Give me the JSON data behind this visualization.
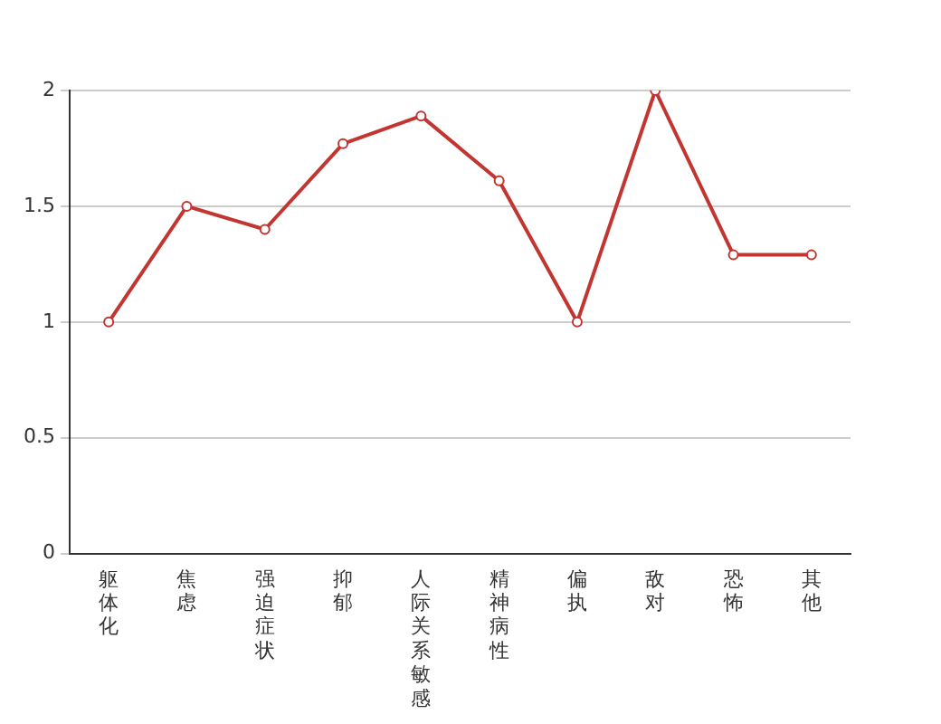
{
  "chart_data": {
    "type": "line",
    "categories": [
      "躯体化",
      "焦虑",
      "强迫症状",
      "抑郁",
      "人际关系敏感",
      "精神病性",
      "偏执",
      "敌对",
      "恐怖",
      "其他"
    ],
    "series": [
      {
        "color": "#c23531",
        "values": [
          1,
          1.5,
          1.4,
          1.77,
          1.89,
          1.61,
          1,
          2,
          1.29,
          1.29
        ]
      }
    ],
    "ylim": [
      0,
      2
    ],
    "yticks": [
      0,
      0.5,
      1,
      1.5,
      2
    ],
    "grid": "y",
    "legend": false,
    "marker": "circle",
    "line_style": "solid"
  }
}
